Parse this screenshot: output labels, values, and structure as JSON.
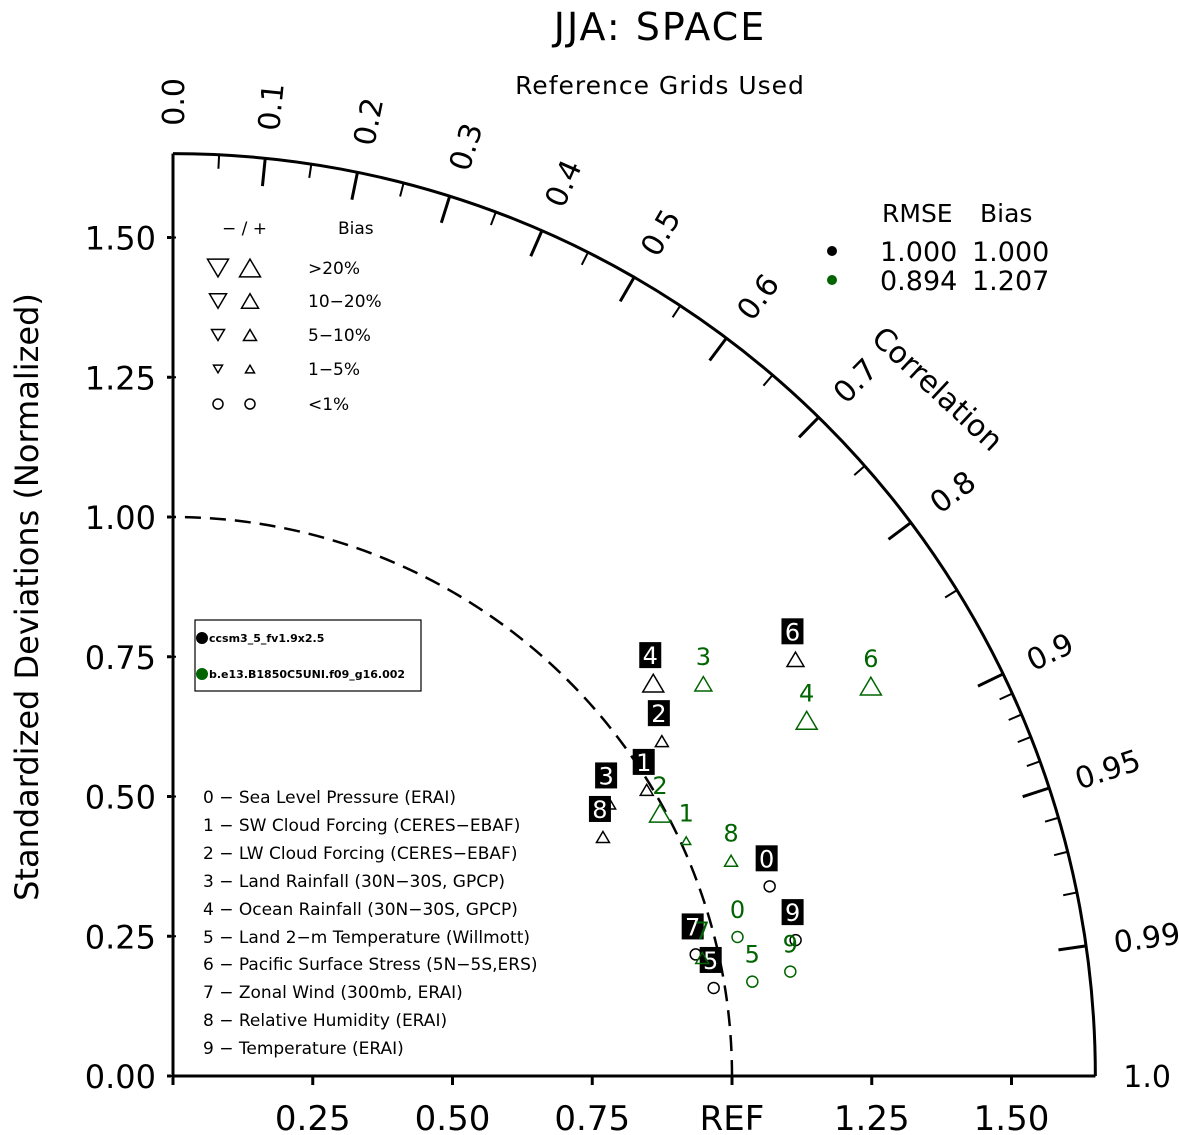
{
  "title": "JJA: SPACE",
  "subtitle": "Reference Grids Used",
  "chart_data": {
    "type": "scatter",
    "subtype": "taylor-diagram",
    "ylabel": "Standardized Deviations (Normalized)",
    "x_ref_label": "REF",
    "arc_label": "Correlation",
    "std_range": [
      0,
      1.65
    ],
    "std_ticks_y": [
      "0.00",
      "0.25",
      "0.50",
      "0.75",
      "1.00",
      "1.25",
      "1.50"
    ],
    "std_ticks_x": [
      "0.25",
      "0.50",
      "0.75",
      "REF",
      "1.25",
      "1.50"
    ],
    "corr_ticks": [
      "0.0",
      "0.1",
      "0.2",
      "0.3",
      "0.4",
      "0.5",
      "0.6",
      "0.7",
      "0.8",
      "0.9",
      "0.95",
      "0.99",
      "1.0"
    ],
    "series": [
      {
        "name": "ccsm3_5_fv1.9x2.5",
        "color": "#000000",
        "rmse": "1.000",
        "bias": "1.000",
        "points": [
          {
            "id": "0",
            "std": 1.12,
            "corr": 0.953,
            "marker": "circle",
            "size": 1
          },
          {
            "id": "1",
            "std": 0.99,
            "corr": 0.856,
            "marker": "up",
            "size": 2
          },
          {
            "id": "2",
            "std": 1.06,
            "corr": 0.825,
            "marker": "up",
            "size": 2
          },
          {
            "id": "3",
            "std": 0.92,
            "corr": 0.848,
            "marker": "up",
            "size": 2
          },
          {
            "id": "4",
            "std": 1.11,
            "corr": 0.774,
            "marker": "up",
            "size": 4
          },
          {
            "id": "5",
            "std": 0.98,
            "corr": 0.987,
            "marker": "circle",
            "size": 1
          },
          {
            "id": "6",
            "std": 1.34,
            "corr": 0.831,
            "marker": "up",
            "size": 3
          },
          {
            "id": "7",
            "std": 0.96,
            "corr": 0.974,
            "marker": "circle",
            "size": 1
          },
          {
            "id": "8",
            "std": 0.88,
            "corr": 0.874,
            "marker": "up",
            "size": 2
          },
          {
            "id": "9",
            "std": 1.14,
            "corr": 0.977,
            "marker": "circle",
            "size": 1
          }
        ]
      },
      {
        "name": "b.e13.B1850C5UNI.f09_g16.002",
        "color": "#006400",
        "rmse": "0.894",
        "bias": "1.207",
        "points": [
          {
            "id": "0",
            "std": 1.04,
            "corr": 0.971,
            "marker": "circle",
            "size": 1
          },
          {
            "id": "1",
            "std": 1.01,
            "corr": 0.909,
            "marker": "up",
            "size": 1
          },
          {
            "id": "2",
            "std": 0.99,
            "corr": 0.88,
            "marker": "up",
            "size": 4
          },
          {
            "id": "3",
            "std": 1.18,
            "corr": 0.804,
            "marker": "up",
            "size": 3
          },
          {
            "id": "4",
            "std": 1.3,
            "corr": 0.872,
            "marker": "up",
            "size": 4
          },
          {
            "id": "5",
            "std": 1.05,
            "corr": 0.987,
            "marker": "circle",
            "size": 1
          },
          {
            "id": "6",
            "std": 1.43,
            "corr": 0.873,
            "marker": "up",
            "size": 4
          },
          {
            "id": "7",
            "std": 0.97,
            "corr": 0.976,
            "marker": "up",
            "size": 2
          },
          {
            "id": "8",
            "std": 1.07,
            "corr": 0.933,
            "marker": "up",
            "size": 2
          },
          {
            "id": "9",
            "std": 1.12,
            "corr": 0.986,
            "marker": "circle",
            "size": 1
          }
        ]
      }
    ]
  },
  "stats_legend": {
    "col1": "RMSE",
    "col2": "Bias"
  },
  "bias_legend": {
    "header_sign": "−  /  +",
    "header_bias": "Bias",
    "rows": [
      ">20%",
      "10−20%",
      "5−10%",
      "1−5%",
      "<1%"
    ]
  },
  "variables": [
    "0 − Sea Level Pressure (ERAI)",
    "1 − SW Cloud Forcing (CERES−EBAF)",
    "2 − LW Cloud Forcing (CERES−EBAF)",
    "3 − Land Rainfall (30N−30S, GPCP)",
    "4 − Ocean Rainfall (30N−30S, GPCP)",
    "5 − Land 2−m Temperature (Willmott)",
    "6 − Pacific Surface Stress (5N−5S,ERS)",
    "7 − Zonal Wind (300mb, ERAI)",
    "8 − Relative Humidity (ERAI)",
    "9 − Temperature (ERAI)"
  ]
}
